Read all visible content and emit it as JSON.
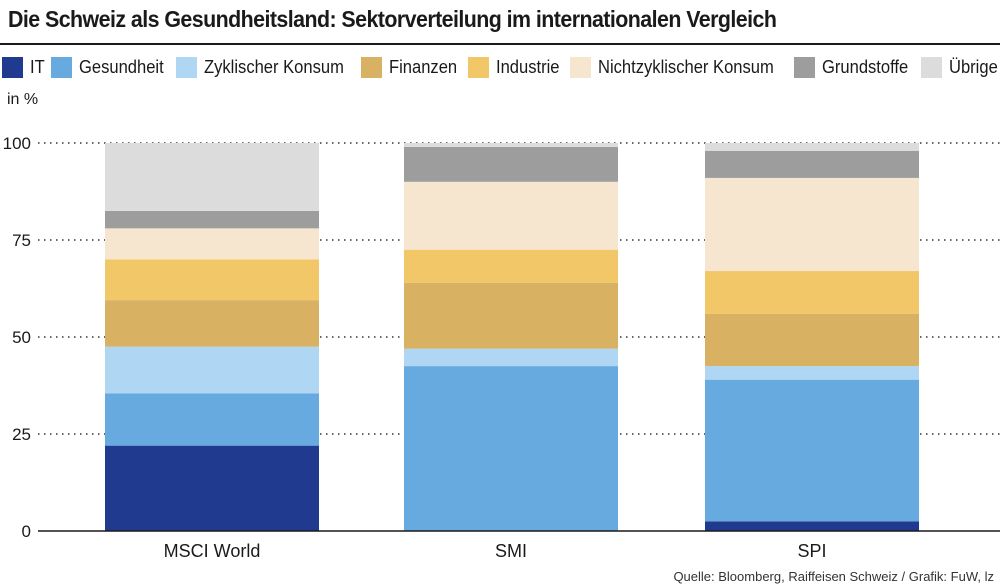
{
  "chart_data": {
    "type": "bar",
    "stacked": true,
    "title": "Die Schweiz als Gesundheitsland: Sektorverteilung im internationalen Vergleich",
    "ylabel": "in %",
    "ylim": [
      0,
      100
    ],
    "yticks": [
      0,
      25,
      50,
      75,
      100
    ],
    "categories": [
      "MSCI World",
      "SMI",
      "SPI"
    ],
    "series": [
      {
        "name": "IT",
        "color": "#1f3a8f",
        "values": [
          22,
          0,
          2.5
        ]
      },
      {
        "name": "Gesundheit",
        "color": "#66aadf",
        "values": [
          13.5,
          42.5,
          36.5
        ]
      },
      {
        "name": "Zyklischer Konsum",
        "color": "#afd6f2",
        "values": [
          12,
          4.5,
          3.5
        ]
      },
      {
        "name": "Finanzen",
        "color": "#d8b262",
        "values": [
          12,
          17,
          13.5
        ]
      },
      {
        "name": "Industrie",
        "color": "#f1c768",
        "values": [
          10.5,
          8.5,
          11
        ]
      },
      {
        "name": "Nichtzyklischer Konsum",
        "color": "#f6e6d0",
        "values": [
          8,
          17.5,
          24
        ]
      },
      {
        "name": "Grundstoffe",
        "color": "#9d9d9d",
        "values": [
          4.5,
          9,
          7
        ]
      },
      {
        "name": "Übrige",
        "color": "#dcdcdc",
        "values": [
          17.5,
          1,
          2
        ]
      }
    ],
    "legend_position": "top",
    "grid": "dotted",
    "source": "Quelle: Bloomberg, Raiffeisen Schweiz / Grafik: FuW, lz"
  }
}
